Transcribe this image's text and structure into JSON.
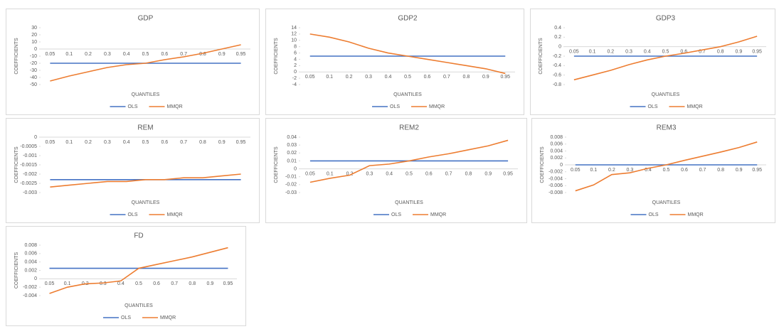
{
  "chart_data": [
    {
      "type": "line",
      "title": "GDP",
      "x_label": "QUANTILES",
      "y_label": "COEFFICIENTS",
      "categories": [
        "0.05",
        "0.1",
        "0.2",
        "0.3",
        "0.4",
        "0.5",
        "0.6",
        "0.7",
        "0.8",
        "0.9",
        "0.95"
      ],
      "series": [
        {
          "name": "OLS",
          "color": "#4472c4",
          "values": [
            -20,
            -20,
            -20,
            -20,
            -20,
            -20,
            -20,
            -20,
            -20,
            -20,
            -20
          ]
        },
        {
          "name": "MMQR",
          "color": "#ed7d31",
          "values": [
            -45,
            -38,
            -32,
            -26,
            -22,
            -20,
            -15,
            -11,
            -6,
            0,
            6
          ]
        }
      ],
      "ylim": [
        -50,
        30
      ],
      "yticks": [
        30,
        20,
        10,
        0,
        -10,
        -20,
        -30,
        -40,
        -50
      ]
    },
    {
      "type": "line",
      "title": "GDP2",
      "x_label": "QUANTILES",
      "y_label": "COEFFICIENTS",
      "categories": [
        "0.05",
        "0.1",
        "0.2",
        "0.3",
        "0.4",
        "0.5",
        "0.6",
        "0.7",
        "0.8",
        "0.9",
        "0.95"
      ],
      "series": [
        {
          "name": "OLS",
          "color": "#4472c4",
          "values": [
            5,
            5,
            5,
            5,
            5,
            5,
            5,
            5,
            5,
            5,
            5
          ]
        },
        {
          "name": "MMQR",
          "color": "#ed7d31",
          "values": [
            12,
            11,
            9.5,
            7.5,
            6,
            5,
            4,
            3,
            2,
            1,
            -0.5
          ]
        }
      ],
      "ylim": [
        -4,
        14
      ],
      "yticks": [
        14,
        12,
        10,
        8,
        6,
        4,
        2,
        0,
        -2,
        -4
      ]
    },
    {
      "type": "line",
      "title": "GDP3",
      "x_label": "QUANTILES",
      "y_label": "COEFFICIENTS",
      "categories": [
        "0.05",
        "0.1",
        "0.2",
        "0.3",
        "0.4",
        "0.5",
        "0.6",
        "0.7",
        "0.8",
        "0.9",
        "0.95"
      ],
      "series": [
        {
          "name": "OLS",
          "color": "#4472c4",
          "values": [
            -0.2,
            -0.2,
            -0.2,
            -0.2,
            -0.2,
            -0.2,
            -0.2,
            -0.2,
            -0.2,
            -0.2,
            -0.2
          ]
        },
        {
          "name": "MMQR",
          "color": "#ed7d31",
          "values": [
            -0.7,
            -0.6,
            -0.5,
            -0.38,
            -0.28,
            -0.2,
            -0.14,
            -0.07,
            0,
            0.1,
            0.22
          ]
        }
      ],
      "ylim": [
        -0.8,
        0.4
      ],
      "yticks": [
        0.4,
        0.2,
        0,
        -0.2,
        -0.4,
        -0.6,
        -0.8
      ]
    },
    {
      "type": "line",
      "title": "REM",
      "x_label": "QUANTILES",
      "y_label": "COEFFICIENTS",
      "categories": [
        "0.05",
        "0.1",
        "0.2",
        "0.3",
        "0.4",
        "0.5",
        "0.6",
        "0.7",
        "0.8",
        "0.9",
        "0.95"
      ],
      "series": [
        {
          "name": "OLS",
          "color": "#4472c4",
          "values": [
            -0.0023,
            -0.0023,
            -0.0023,
            -0.0023,
            -0.0023,
            -0.0023,
            -0.0023,
            -0.0023,
            -0.0023,
            -0.0023,
            -0.0023
          ]
        },
        {
          "name": "MMQR",
          "color": "#ed7d31",
          "values": [
            -0.0027,
            -0.0026,
            -0.0025,
            -0.0024,
            -0.0024,
            -0.0023,
            -0.0023,
            -0.0022,
            -0.0022,
            -0.0021,
            -0.002
          ]
        }
      ],
      "ylim": [
        -0.003,
        0
      ],
      "yticks": [
        0,
        -0.0005,
        -0.001,
        -0.0015,
        -0.002,
        -0.0025,
        -0.003
      ]
    },
    {
      "type": "line",
      "title": "REM2",
      "x_label": "QUANTILES",
      "y_label": "COEFFICIENTS",
      "categories": [
        "0.05",
        "0.1",
        "0.2",
        "0.3",
        "0.4",
        "0.5",
        "0.6",
        "0.7",
        "0.8",
        "0.9",
        "0.95"
      ],
      "series": [
        {
          "name": "OLS",
          "color": "#4472c4",
          "values": [
            0.01,
            0.01,
            0.01,
            0.01,
            0.01,
            0.01,
            0.01,
            0.01,
            0.01,
            0.01,
            0.01
          ]
        },
        {
          "name": "MMQR",
          "color": "#ed7d31",
          "values": [
            -0.017,
            -0.012,
            -0.008,
            0.004,
            0.006,
            0.01,
            0.015,
            0.019,
            0.024,
            0.029,
            0.036
          ]
        }
      ],
      "ylim": [
        -0.03,
        0.04
      ],
      "yticks": [
        0.04,
        0.03,
        0.02,
        0.01,
        0,
        -0.01,
        -0.02,
        -0.03
      ]
    },
    {
      "type": "line",
      "title": "REM3",
      "x_label": "QUANTILES",
      "y_label": "COEFFICIENTS",
      "categories": [
        "0.05",
        "0.1",
        "0.2",
        "0.3",
        "0.4",
        "0.5",
        "0.6",
        "0.7",
        "0.8",
        "0.9",
        "0.95"
      ],
      "series": [
        {
          "name": "OLS",
          "color": "#4472c4",
          "values": [
            0,
            0,
            0,
            0,
            0,
            0,
            0,
            0,
            0,
            0,
            0
          ]
        },
        {
          "name": "MMQR",
          "color": "#ed7d31",
          "values": [
            -0.0075,
            -0.0058,
            -0.0028,
            -0.0023,
            -0.001,
            0,
            0.0013,
            0.0025,
            0.0037,
            0.005,
            0.0066
          ]
        }
      ],
      "ylim": [
        -0.008,
        0.008
      ],
      "yticks": [
        0.008,
        0.006,
        0.004,
        0.002,
        0,
        -0.002,
        -0.004,
        -0.006,
        -0.008
      ]
    },
    {
      "type": "line",
      "title": "FD",
      "x_label": "QUANTILES",
      "y_label": "COEFFICIENTS",
      "categories": [
        "0.05",
        "0.1",
        "0.2",
        "0.3",
        "0.4",
        "0.5",
        "0.6",
        "0.7",
        "0.8",
        "0.9",
        "0.95"
      ],
      "series": [
        {
          "name": "OLS",
          "color": "#4472c4",
          "values": [
            0.0025,
            0.0025,
            0.0025,
            0.0025,
            0.0025,
            0.0025,
            0.0025,
            0.0025,
            0.0025,
            0.0025,
            0.0025
          ]
        },
        {
          "name": "MMQR",
          "color": "#ed7d31",
          "values": [
            -0.0035,
            -0.002,
            -0.0012,
            -0.001,
            -0.0005,
            0.0025,
            0.0034,
            0.0043,
            0.0052,
            0.0063,
            0.0074
          ]
        }
      ],
      "ylim": [
        -0.004,
        0.008
      ],
      "yticks": [
        0.008,
        0.006,
        0.004,
        0.002,
        0,
        -0.002,
        -0.004
      ]
    }
  ]
}
